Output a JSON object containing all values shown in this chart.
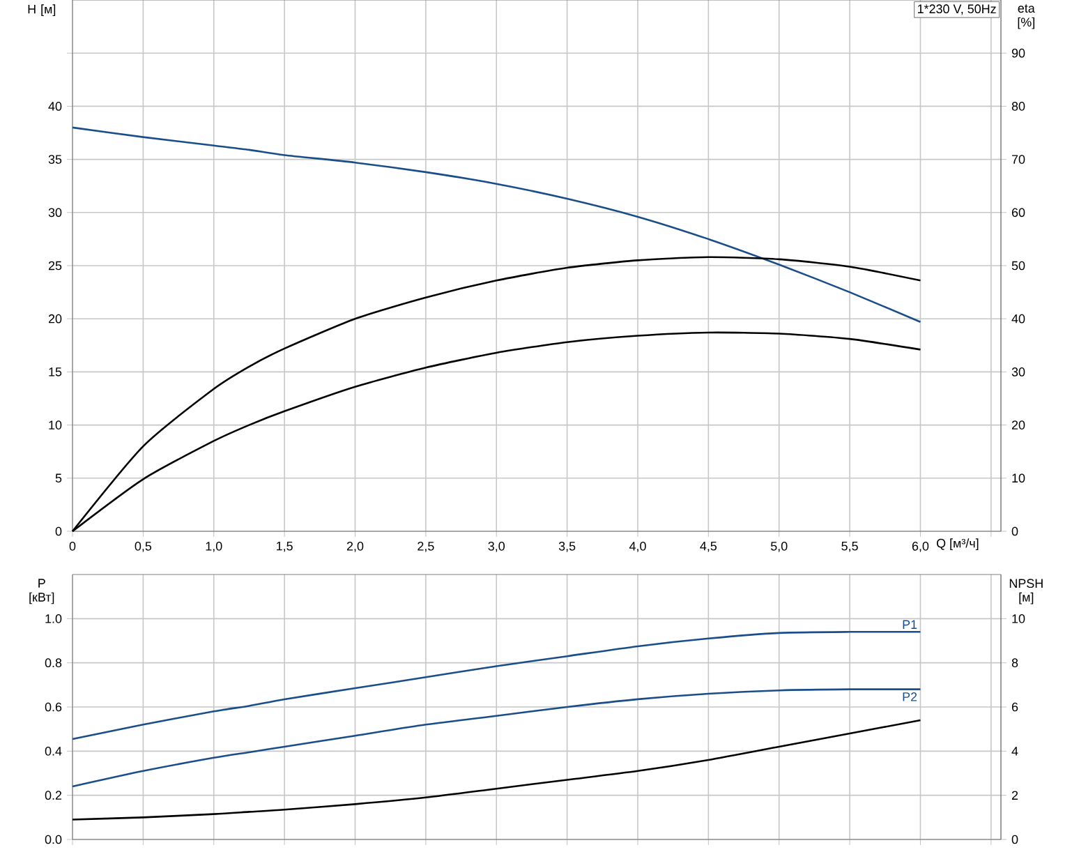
{
  "chart_data": [
    {
      "type": "line",
      "ylabel": "H [м]",
      "y2label": "eta [%]",
      "xlabel": "Q [м³/ч]",
      "annotations": [
        "1*230 V, 50Hz"
      ],
      "xlim": [
        0,
        6.57
      ],
      "ylim": [
        0,
        50
      ],
      "y2lim": [
        0,
        100
      ],
      "xticks": [
        0,
        {
          "value": 0.5,
          "label": "0,5"
        },
        {
          "value": 1.0,
          "label": "1,0"
        },
        {
          "value": 1.5,
          "label": "1,5"
        },
        {
          "value": 2.0,
          "label": "2,0"
        },
        {
          "value": 2.5,
          "label": "2,5"
        },
        {
          "value": 3.0,
          "label": "3,0"
        },
        {
          "value": 3.5,
          "label": "3,5"
        },
        {
          "value": 4.0,
          "label": "4,0"
        },
        {
          "value": 4.5,
          "label": "4,5"
        },
        {
          "value": 5.0,
          "label": "5,0"
        },
        {
          "value": 5.5,
          "label": "5,5"
        },
        {
          "value": 6.0,
          "label": "6,0"
        },
        {
          "value": 6.5,
          "label": null
        }
      ],
      "yticks": [
        0,
        5,
        10,
        15,
        20,
        25,
        30,
        35,
        40,
        {
          "value": 45,
          "label": null
        }
      ],
      "y2ticks": [
        0,
        10,
        20,
        30,
        40,
        50,
        60,
        70,
        80,
        90
      ],
      "grid": true,
      "x": [
        0,
        0.5,
        1.0,
        1.25,
        1.5,
        2.0,
        2.5,
        3.0,
        3.5,
        4.0,
        4.5,
        5.0,
        5.5,
        6.0
      ],
      "series": [
        {
          "color": "#1a4e8a",
          "values": [
            38,
            37.1,
            36.3,
            35.9,
            35.4,
            34.7,
            33.8,
            32.7,
            31.3,
            29.6,
            27.5,
            25.1,
            22.5,
            19.7
          ]
        },
        {
          "color": "#000000",
          "axis": "y2",
          "values": [
            0,
            16,
            26.8,
            31,
            34.4,
            40,
            44,
            47.2,
            49.6,
            51,
            51.6,
            51.2,
            49.8,
            47.2
          ]
        },
        {
          "color": "#000000",
          "axis": "y2",
          "values": [
            0,
            9.8,
            17,
            20,
            22.6,
            27.2,
            30.8,
            33.6,
            35.6,
            36.8,
            37.4,
            37.2,
            36.2,
            34.2
          ]
        }
      ]
    },
    {
      "type": "line",
      "ylabel": "P [кВт]",
      "y2label": "NPSH [м]",
      "tick_labels": "y",
      "xlim": [
        0,
        6.57
      ],
      "ylim": [
        0,
        1.2
      ],
      "y2lim": [
        0,
        12
      ],
      "xticks": [
        0,
        0.5,
        1.0,
        1.5,
        2.0,
        2.5,
        3.0,
        3.5,
        4.0,
        4.5,
        5.0,
        5.5,
        6.0,
        6.5
      ],
      "yticks": [
        {
          "value": 0,
          "label": "0.0"
        },
        {
          "value": 0.2,
          "label": "0.2"
        },
        {
          "value": 0.4,
          "label": "0.4"
        },
        {
          "value": 0.6,
          "label": "0.6"
        },
        {
          "value": 0.8,
          "label": "0.8"
        },
        {
          "value": 1.0,
          "label": "1.0"
        }
      ],
      "y2ticks": [
        0,
        2,
        4,
        6,
        8,
        10
      ],
      "grid": true,
      "x": [
        0,
        0.5,
        1.0,
        1.25,
        1.5,
        2.0,
        2.5,
        3.0,
        3.5,
        4.0,
        4.5,
        5.0,
        5.5,
        6.0
      ],
      "series": [
        {
          "name": "P1",
          "color": "#1a4e8a",
          "values": [
            0.455,
            0.52,
            0.58,
            0.605,
            0.635,
            0.685,
            0.735,
            0.785,
            0.83,
            0.875,
            0.91,
            0.935,
            0.94,
            0.94
          ]
        },
        {
          "name": "P2",
          "color": "#1a4e8a",
          "values": [
            0.24,
            0.31,
            0.37,
            0.395,
            0.42,
            0.47,
            0.52,
            0.56,
            0.6,
            0.635,
            0.66,
            0.675,
            0.68,
            0.68
          ]
        },
        {
          "color": "#000000",
          "axis": "y2",
          "values": [
            0.9,
            1.0,
            1.15,
            1.25,
            1.35,
            1.6,
            1.9,
            2.3,
            2.7,
            3.1,
            3.6,
            4.2,
            4.8,
            5.4
          ]
        }
      ]
    }
  ]
}
